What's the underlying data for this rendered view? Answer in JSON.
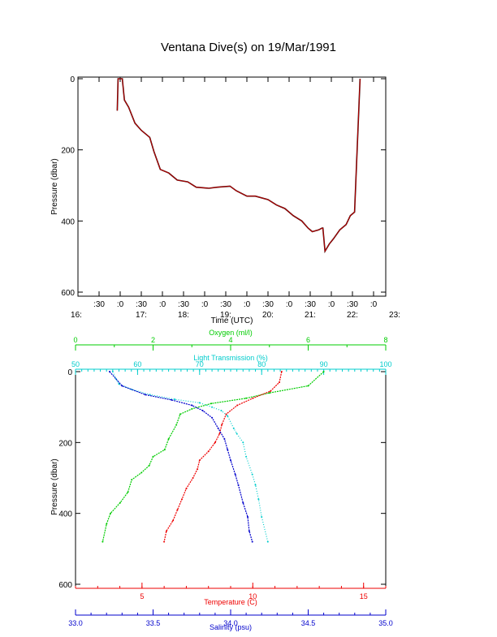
{
  "title": "Ventana Dive(s) on 19/Mar/1991",
  "colors": {
    "axis": "#000000",
    "pressure_trace": "#cc0000",
    "oxygen": "#00cc00",
    "transmission": "#00cccc",
    "temperature": "#ee0000",
    "salinity": "#0000cc"
  },
  "chart_data": [
    {
      "type": "line",
      "ylabel": "Pressure (dbar)",
      "xlabel": "Time (UTC)",
      "ylim": [
        600,
        0
      ],
      "y_ticks": [
        "0",
        "200",
        "400",
        "600"
      ],
      "x_ticks_minutes": [
        ":30",
        ":0",
        ":30",
        ":0",
        ":30",
        ":0",
        ":30",
        ":0",
        ":30",
        ":0",
        ":30",
        ":0",
        ":30",
        ":0"
      ],
      "x_ticks_hours": [
        "16:",
        "17:",
        "18:",
        "19:",
        "20:",
        "21:",
        "22:",
        "23:"
      ],
      "xlim_hours": [
        16.5,
        23.0
      ],
      "series": [
        {
          "x": [
            16.93,
            16.95,
            17.0,
            17.05,
            17.1,
            17.2,
            17.35,
            17.5,
            17.7,
            17.8,
            17.95,
            18.15,
            18.35,
            18.6,
            18.8,
            19.1,
            19.3,
            19.6,
            19.75,
            20.0,
            20.2,
            20.5,
            20.7,
            20.9,
            21.1,
            21.3,
            21.45,
            21.55,
            21.7,
            21.78,
            21.8,
            21.85,
            21.95,
            22.05,
            22.2,
            22.35,
            22.45,
            22.55,
            22.68
          ],
          "y": [
            90,
            0,
            0,
            0,
            60,
            80,
            125,
            145,
            165,
            205,
            255,
            265,
            285,
            290,
            305,
            308,
            305,
            302,
            315,
            330,
            330,
            340,
            355,
            365,
            385,
            400,
            420,
            430,
            425,
            420,
            420,
            485,
            465,
            450,
            425,
            410,
            385,
            375,
            0
          ]
        }
      ]
    },
    {
      "type": "scatter",
      "ylabel": "Pressure (dbar)",
      "ylim": [
        600,
        0
      ],
      "y_ticks": [
        "0",
        "200",
        "400",
        "600"
      ],
      "axes": {
        "oxygen": {
          "label": "Oxygen (ml/l)",
          "range": [
            0,
            8
          ],
          "ticks": [
            "0",
            "2",
            "4",
            "6",
            "8"
          ]
        },
        "transmission": {
          "label": "Light Transmission (%)",
          "range": [
            50,
            100
          ],
          "ticks": [
            "50",
            "60",
            "70",
            "80",
            "90",
            "100"
          ]
        },
        "temperature": {
          "label": "Temperature (C)",
          "range": [
            2,
            16
          ],
          "ticks": [
            "5",
            "10",
            "15"
          ]
        },
        "salinity": {
          "label": "Salinity (psu)",
          "range": [
            33.0,
            35.0
          ],
          "ticks": [
            "33.0",
            "33.5",
            "34.0",
            "34.5",
            "35.0"
          ]
        }
      },
      "series": [
        {
          "name": "Oxygen (ml/l)",
          "x": [
            6.4,
            6.0,
            5.0,
            4.4,
            3.5,
            3.0,
            2.7,
            2.6,
            2.4,
            2.3,
            2.0,
            1.9,
            1.7,
            1.45,
            1.35,
            1.15,
            0.9,
            0.8,
            0.7
          ],
          "y": [
            0,
            40,
            60,
            75,
            90,
            105,
            120,
            150,
            190,
            220,
            240,
            265,
            285,
            305,
            340,
            370,
            400,
            430,
            480
          ]
        },
        {
          "name": "Light Transmission (%)",
          "x": [
            56,
            56.5,
            57,
            59,
            62,
            66,
            70,
            72,
            73.5,
            74.5,
            75.5,
            76,
            77,
            77.5,
            78.5,
            79,
            79.5,
            80,
            81
          ],
          "y": [
            0,
            20,
            35,
            50,
            65,
            78,
            88,
            100,
            110,
            125,
            160,
            175,
            200,
            240,
            290,
            320,
            360,
            410,
            480
          ]
        },
        {
          "name": "Temperature (C)",
          "x": [
            11.3,
            11.2,
            10.8,
            10.0,
            9.3,
            8.8,
            8.6,
            8.5,
            8.3,
            8.0,
            7.6,
            7.5,
            7.3,
            7.0,
            6.8,
            6.6,
            6.4,
            6.1,
            6.0
          ],
          "y": [
            0,
            30,
            55,
            75,
            95,
            120,
            150,
            175,
            200,
            225,
            250,
            275,
            300,
            330,
            360,
            390,
            420,
            450,
            480
          ]
        },
        {
          "name": "Salinity (psu)",
          "x": [
            33.22,
            33.3,
            33.45,
            33.62,
            33.75,
            33.82,
            33.88,
            33.92,
            33.96,
            33.98,
            34.0,
            34.03,
            34.05,
            34.08,
            34.11,
            34.12,
            34.14
          ],
          "y": [
            0,
            40,
            65,
            80,
            95,
            110,
            130,
            160,
            190,
            220,
            250,
            290,
            320,
            370,
            410,
            450,
            480
          ]
        }
      ]
    }
  ]
}
